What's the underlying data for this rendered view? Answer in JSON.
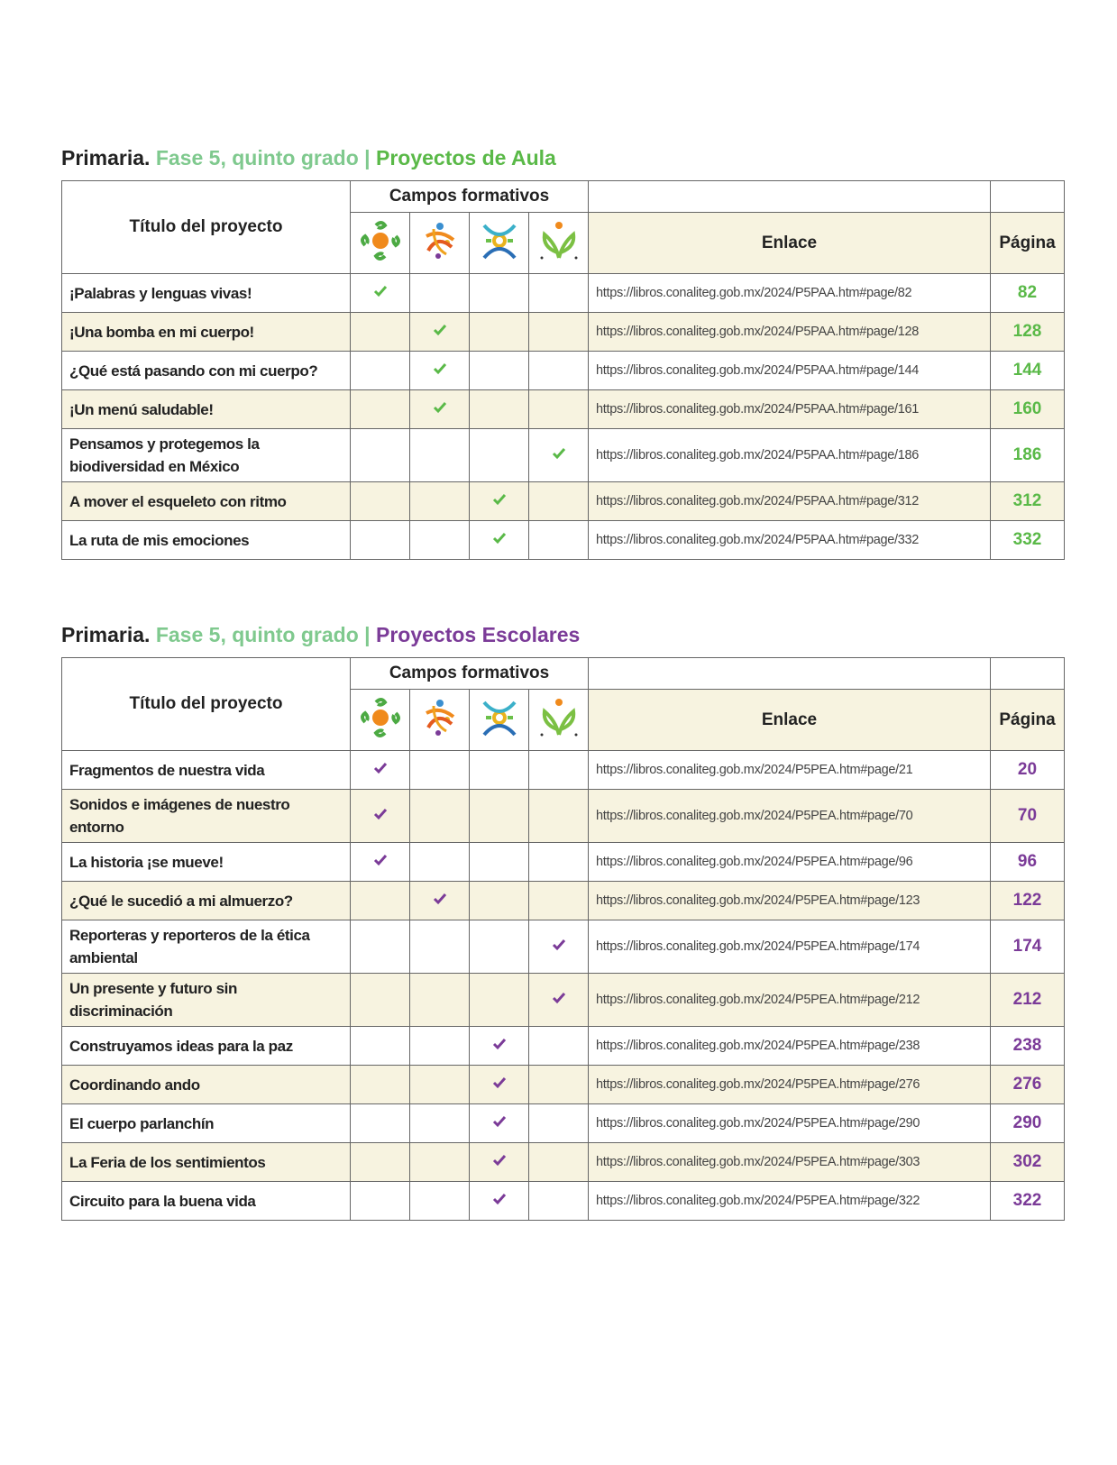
{
  "sections": [
    {
      "heading": {
        "lead": "Primaria.",
        "phase": "Fase 5, quinto grado",
        "separator": "|",
        "name": "Proyectos de Aula"
      },
      "accent": "#5ab948",
      "table": {
        "headers": {
          "title": "Título del proyecto",
          "campos": "Campos formativos",
          "link": "Enlace",
          "page": "Página"
        },
        "rows": [
          {
            "title": "¡Palabras y lenguas vivas!",
            "campos": [
              true,
              false,
              false,
              false
            ],
            "link": "https://libros.conaliteg.gob.mx/2024/P5PAA.htm#page/82",
            "page": 82
          },
          {
            "title": "¡Una bomba en mi cuerpo!",
            "campos": [
              false,
              true,
              false,
              false
            ],
            "link": "https://libros.conaliteg.gob.mx/2024/P5PAA.htm#page/128",
            "page": 128
          },
          {
            "title": "¿Qué está pasando con mi cuerpo?",
            "campos": [
              false,
              true,
              false,
              false
            ],
            "link": "https://libros.conaliteg.gob.mx/2024/P5PAA.htm#page/144",
            "page": 144
          },
          {
            "title": "¡Un menú saludable!",
            "campos": [
              false,
              true,
              false,
              false
            ],
            "link": "https://libros.conaliteg.gob.mx/2024/P5PAA.htm#page/161",
            "page": 160
          },
          {
            "title": "Pensamos y protegemos la biodiversidad en México",
            "campos": [
              false,
              false,
              false,
              true
            ],
            "link": "https://libros.conaliteg.gob.mx/2024/P5PAA.htm#page/186",
            "page": 186
          },
          {
            "title": "A mover el esqueleto con ritmo",
            "campos": [
              false,
              false,
              true,
              false
            ],
            "link": "https://libros.conaliteg.gob.mx/2024/P5PAA.htm#page/312",
            "page": 312
          },
          {
            "title": "La ruta de mis emociones",
            "campos": [
              false,
              false,
              true,
              false
            ],
            "link": "https://libros.conaliteg.gob.mx/2024/P5PAA.htm#page/332",
            "page": 332
          }
        ]
      }
    },
    {
      "heading": {
        "lead": "Primaria.",
        "phase": "Fase 5, quinto grado",
        "separator": "|",
        "name": "Proyectos Escolares"
      },
      "accent": "#7b3b98",
      "table": {
        "headers": {
          "title": "Título del proyecto",
          "campos": "Campos formativos",
          "link": "Enlace",
          "page": "Página"
        },
        "rows": [
          {
            "title": "Fragmentos de nuestra vida",
            "campos": [
              true,
              false,
              false,
              false
            ],
            "link": "https://libros.conaliteg.gob.mx/2024/P5PEA.htm#page/21",
            "page": 20
          },
          {
            "title": "Sonidos e imágenes de nuestro entorno",
            "campos": [
              true,
              false,
              false,
              false
            ],
            "link": "https://libros.conaliteg.gob.mx/2024/P5PEA.htm#page/70",
            "page": 70
          },
          {
            "title": "La historia ¡se mueve!",
            "campos": [
              true,
              false,
              false,
              false
            ],
            "link": "https://libros.conaliteg.gob.mx/2024/P5PEA.htm#page/96",
            "page": 96
          },
          {
            "title": "¿Qué le sucedió a mi almuerzo?",
            "campos": [
              false,
              true,
              false,
              false
            ],
            "link": "https://libros.conaliteg.gob.mx/2024/P5PEA.htm#page/123",
            "page": 122
          },
          {
            "title": "Reporteras y reporteros de la ética ambiental",
            "campos": [
              false,
              false,
              false,
              true
            ],
            "link": "https://libros.conaliteg.gob.mx/2024/P5PEA.htm#page/174",
            "page": 174
          },
          {
            "title": "Un presente y futuro sin discriminación",
            "campos": [
              false,
              false,
              false,
              true
            ],
            "link": "https://libros.conaliteg.gob.mx/2024/P5PEA.htm#page/212",
            "page": 212
          },
          {
            "title": "Construyamos ideas para la paz",
            "campos": [
              false,
              false,
              true,
              false
            ],
            "link": "https://libros.conaliteg.gob.mx/2024/P5PEA.htm#page/238",
            "page": 238
          },
          {
            "title": "Coordinando ando",
            "campos": [
              false,
              false,
              true,
              false
            ],
            "link": "https://libros.conaliteg.gob.mx/2024/P5PEA.htm#page/276",
            "page": 276
          },
          {
            "title": "El cuerpo parlanchín",
            "campos": [
              false,
              false,
              true,
              false
            ],
            "link": "https://libros.conaliteg.gob.mx/2024/P5PEA.htm#page/290",
            "page": 290
          },
          {
            "title": "La Feria de los sentimientos",
            "campos": [
              false,
              false,
              true,
              false
            ],
            "link": "https://libros.conaliteg.gob.mx/2024/P5PEA.htm#page/303",
            "page": 302
          },
          {
            "title": "Circuito para la buena vida",
            "campos": [
              false,
              false,
              true,
              false
            ],
            "link": "https://libros.conaliteg.gob.mx/2024/P5PEA.htm#page/322",
            "page": 322
          }
        ]
      }
    }
  ]
}
